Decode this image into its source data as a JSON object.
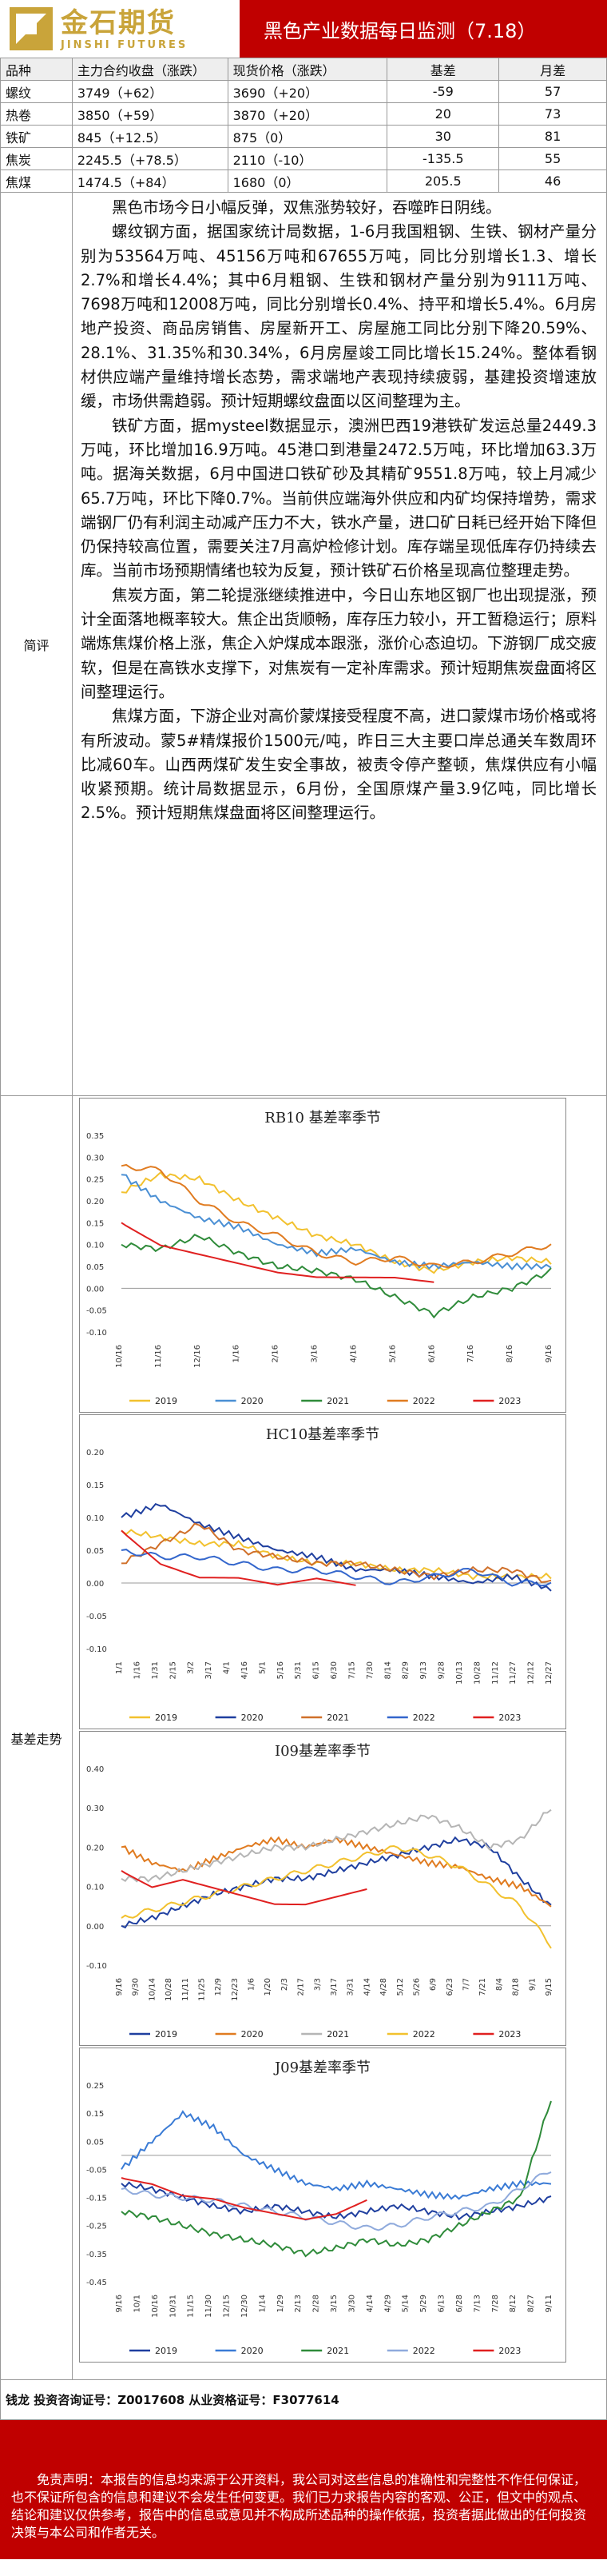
{
  "header": {
    "logo_cn": "金石期货",
    "logo_en": "JINSHI FUTURES",
    "title": "黑色产业数据每日监测（7.18）"
  },
  "table": {
    "headers": [
      "品种",
      "主力合约收盘（涨跌）",
      "现货价格（涨跌）",
      "基差",
      "月差"
    ],
    "rows": [
      [
        "螺纹",
        "3749（+62）",
        "3690（+20）",
        "-59",
        "57"
      ],
      [
        "热卷",
        "3850（+59）",
        "3870（+20）",
        "20",
        "73"
      ],
      [
        "铁矿",
        "845（+12.5）",
        "875（0）",
        "30",
        "81"
      ],
      [
        "焦炭",
        "2245.5（+78.5）",
        "2110（-10）",
        "-135.5",
        "55"
      ],
      [
        "焦煤",
        "1474.5（+84）",
        "1680（0）",
        "205.5",
        "46"
      ]
    ]
  },
  "review": {
    "label": "简评",
    "paragraphs": [
      "黑色市场今日小幅反弹，双焦涨势较好，吞噬昨日阴线。",
      "螺纹钢方面，据国家统计局数据，1-6月我国粗钢、生铁、钢材产量分别为53564万吨、45156万吨和67655万吨，同比分别增长1.3、增长2.7%和增长4.4%；其中6月粗钢、生铁和钢材产量分别为9111万吨、7698万吨和12008万吨，同比分别增长0.4%、持平和增长5.4%。6月房地产投资、商品房销售、房屋新开工、房屋施工同比分别下降20.59%、28.1%、31.35%和30.34%，6月房屋竣工同比增长15.24%。整体看钢材供应端产量维持增长态势，需求端地产表现持续疲弱，基建投资增速放缓，市场供需趋弱。预计短期螺纹盘面以区间整理为主。",
      "铁矿方面，据mysteel数据显示，澳洲巴西19港铁矿发运总量2449.3万吨，环比增加16.9万吨。45港口到港量2472.5万吨，环比增加63.3万吨。据海关数据，6月中国进口铁矿砂及其精矿9551.8万吨，较上月减少65.7万吨，环比下降0.7%。当前供应端海外供应和内矿均保持增势，需求端钢厂仍有利润主动减产压力不大，铁水产量，进口矿日耗已经开始下降但仍保持较高位置，需要关注7月高炉检修计划。库存端呈现低库存仍持续去库。当前市场预期情绪也较为反复，预计铁矿石价格呈现高位整理走势。",
      "焦炭方面，第二轮提涨继续推进中，今日山东地区钢厂也出现提涨，预计全面落地概率较大。焦企出货顺畅，库存压力较小，开工暂稳运行；原料端炼焦煤价格上涨，焦企入炉煤成本跟涨，涨价心态迫切。下游钢厂成交疲软，但是在高铁水支撑下，对焦炭有一定补库需求。预计短期焦炭盘面将区间整理运行。",
      "焦煤方面，下游企业对高价蒙煤接受程度不高，进口蒙煤市场价格或将有所波动。蒙5#精煤报价1500元/吨，昨日三大主要口岸总通关车数周环比减60车。山西两煤矿发生安全事故，被责令停产整顿，焦煤供应有小幅收紧预期。统计局数据显示，6月份，全国原煤产量3.9亿吨，同比增长2.5%。预计短期焦煤盘面将区间整理运行。"
    ]
  },
  "basis": {
    "label": "基差走势"
  },
  "chart_data": [
    {
      "type": "line",
      "title": "RB10 基差率季节",
      "x_ticks": [
        "10/16",
        "11/16",
        "12/16",
        "1/16",
        "2/16",
        "3/16",
        "4/16",
        "5/16",
        "6/16",
        "7/16",
        "8/16",
        "9/16"
      ],
      "ylim": [
        -0.1,
        0.35
      ],
      "y_ticks": [
        -0.1,
        -0.05,
        0.0,
        0.05,
        0.1,
        0.15,
        0.2,
        0.25,
        0.3,
        0.35
      ],
      "legend": "bottom",
      "series": [
        {
          "name": "2019",
          "color": "#f2c12e",
          "values": [
            0.22,
            0.26,
            0.25,
            0.2,
            0.16,
            0.12,
            0.1,
            0.06,
            0.04,
            0.06,
            0.07,
            0.06
          ]
        },
        {
          "name": "2020",
          "color": "#4a8fd4",
          "values": [
            0.26,
            0.2,
            0.16,
            0.14,
            0.1,
            0.08,
            0.09,
            0.06,
            0.05,
            0.06,
            0.05,
            0.05
          ]
        },
        {
          "name": "2021",
          "color": "#2f8b3a",
          "values": [
            0.1,
            0.09,
            0.12,
            0.08,
            0.05,
            0.04,
            0.02,
            -0.02,
            -0.06,
            -0.02,
            0.0,
            0.04
          ]
        },
        {
          "name": "2022",
          "color": "#e07b20",
          "values": [
            0.28,
            0.27,
            0.2,
            0.15,
            0.12,
            0.08,
            0.06,
            0.07,
            0.05,
            0.06,
            0.08,
            0.1
          ]
        },
        {
          "name": "2023",
          "color": "#e02020",
          "values": [
            0.15,
            0.1,
            0.08,
            0.06,
            0.04,
            0.03,
            0.03,
            0.03,
            0.02,
            null,
            null,
            null
          ]
        }
      ]
    },
    {
      "type": "line",
      "title": "HC10基差率季节",
      "x_ticks": [
        "1/1",
        "1/16",
        "1/31",
        "2/15",
        "3/2",
        "3/17",
        "4/1",
        "4/16",
        "5/1",
        "5/16",
        "5/31",
        "6/15",
        "6/30",
        "7/15",
        "7/30",
        "8/14",
        "8/29",
        "9/13",
        "9/28",
        "10/13",
        "10/28",
        "11/12",
        "11/27",
        "12/12",
        "12/27"
      ],
      "ylim": [
        -0.1,
        0.2
      ],
      "y_ticks": [
        -0.1,
        -0.05,
        0.0,
        0.05,
        0.1,
        0.15,
        0.2
      ],
      "legend": "bottom",
      "series": [
        {
          "name": "2019",
          "color": "#f2c12e",
          "values": [
            0.08,
            0.07,
            0.06,
            0.06,
            0.04,
            0.03,
            0.03,
            0.02,
            0.02,
            0.01,
            0.01,
            0.01
          ]
        },
        {
          "name": "2020",
          "color": "#1f3f9f",
          "values": [
            0.1,
            0.12,
            0.09,
            0.07,
            0.05,
            0.04,
            0.02,
            0.02,
            0.01,
            0.0,
            0.01,
            -0.01
          ]
        },
        {
          "name": "2021",
          "color": "#d0702a",
          "values": [
            0.03,
            0.06,
            0.09,
            0.05,
            0.04,
            0.03,
            0.03,
            0.02,
            0.01,
            0.02,
            0.02,
            0.0
          ]
        },
        {
          "name": "2022",
          "color": "#3366cc",
          "values": [
            0.05,
            0.04,
            0.04,
            0.03,
            0.02,
            0.02,
            0.01,
            0.0,
            0.01,
            0.02,
            0.0,
            0.0
          ]
        },
        {
          "name": "2023",
          "color": "#e02020",
          "values": [
            0.08,
            0.03,
            0.01,
            0.01,
            0.0,
            0.01,
            0.0,
            null,
            null,
            null,
            null,
            null
          ]
        }
      ]
    },
    {
      "type": "line",
      "title": "I09基差率季节",
      "x_ticks": [
        "9/16",
        "9/30",
        "10/14",
        "10/28",
        "11/11",
        "11/25",
        "12/9",
        "12/23",
        "1/6",
        "1/20",
        "2/3",
        "2/17",
        "3/3",
        "3/17",
        "3/31",
        "4/14",
        "4/28",
        "5/12",
        "5/26",
        "6/9",
        "6/23",
        "7/7",
        "7/21",
        "8/4",
        "8/18",
        "9/1",
        "9/15"
      ],
      "ylim": [
        -0.1,
        0.4
      ],
      "y_ticks": [
        -0.1,
        0.0,
        0.1,
        0.2,
        0.3,
        0.4
      ],
      "legend": "bottom",
      "series": [
        {
          "name": "2019",
          "color": "#1f3f9f",
          "values": [
            0.0,
            0.02,
            0.05,
            0.08,
            0.1,
            0.12,
            0.12,
            0.14,
            0.16,
            0.18,
            0.2,
            0.22,
            0.2,
            0.12,
            0.05
          ]
        },
        {
          "name": "2020",
          "color": "#e07b20",
          "values": [
            0.2,
            0.16,
            0.14,
            0.17,
            0.2,
            0.22,
            0.2,
            0.22,
            0.2,
            0.18,
            0.16,
            0.15,
            0.12,
            0.1,
            0.05
          ]
        },
        {
          "name": "2021",
          "color": "#b5b5b5",
          "values": [
            0.12,
            0.12,
            0.14,
            0.16,
            0.18,
            0.2,
            0.2,
            0.22,
            0.24,
            0.26,
            0.28,
            0.25,
            0.2,
            0.22,
            0.3
          ]
        },
        {
          "name": "2022",
          "color": "#f2c12e",
          "values": [
            0.02,
            0.04,
            0.06,
            0.08,
            0.1,
            0.12,
            0.14,
            0.16,
            0.18,
            0.2,
            0.18,
            0.15,
            0.1,
            0.05,
            -0.05
          ]
        },
        {
          "name": "2023",
          "color": "#e02020",
          "values": [
            0.14,
            0.1,
            0.12,
            0.1,
            0.08,
            0.06,
            0.06,
            0.08,
            0.1,
            null,
            null,
            null,
            null,
            null,
            null
          ]
        }
      ]
    },
    {
      "type": "line",
      "title": "J09基差率季节",
      "x_ticks": [
        "9/16",
        "10/1",
        "10/16",
        "10/31",
        "11/15",
        "11/30",
        "12/15",
        "12/30",
        "1/14",
        "1/29",
        "2/13",
        "2/28",
        "3/15",
        "3/30",
        "4/14",
        "4/29",
        "5/14",
        "5/29",
        "6/13",
        "6/28",
        "7/13",
        "7/28",
        "8/12",
        "8/27",
        "9/11"
      ],
      "ylim": [
        -0.45,
        0.25
      ],
      "y_ticks": [
        -0.45,
        -0.35,
        -0.25,
        -0.15,
        -0.05,
        0.05,
        0.15,
        0.25
      ],
      "legend": "bottom",
      "series": [
        {
          "name": "2019",
          "color": "#1f3f9f",
          "values": [
            -0.1,
            -0.12,
            -0.15,
            -0.18,
            -0.2,
            -0.18,
            -0.2,
            -0.22,
            -0.2,
            -0.18,
            -0.2,
            -0.22,
            -0.2,
            -0.18,
            -0.15
          ]
        },
        {
          "name": "2020",
          "color": "#3a7bd5",
          "values": [
            -0.05,
            0.05,
            0.15,
            0.1,
            0.0,
            -0.05,
            -0.1,
            -0.12,
            -0.1,
            -0.12,
            -0.14,
            -0.15,
            -0.12,
            -0.1,
            -0.1
          ]
        },
        {
          "name": "2021",
          "color": "#2f8b3a",
          "values": [
            -0.2,
            -0.22,
            -0.25,
            -0.28,
            -0.3,
            -0.32,
            -0.35,
            -0.33,
            -0.3,
            -0.32,
            -0.3,
            -0.25,
            -0.2,
            -0.15,
            0.2
          ]
        },
        {
          "name": "2022",
          "color": "#8faadc",
          "values": [
            -0.12,
            -0.14,
            -0.15,
            -0.16,
            -0.18,
            -0.2,
            -0.22,
            -0.24,
            -0.26,
            -0.25,
            -0.22,
            -0.2,
            -0.18,
            -0.12,
            -0.05
          ]
        },
        {
          "name": "2023",
          "color": "#e02020",
          "values": [
            -0.08,
            -0.1,
            -0.14,
            -0.15,
            -0.18,
            -0.2,
            -0.22,
            -0.2,
            -0.15,
            null,
            null,
            null,
            null,
            null,
            null
          ]
        }
      ]
    }
  ],
  "contact": "钱龙 投资咨询证号：Z0017608 从业资格证号：F3077614",
  "disclaimer": "免责声明：本报告的信息均来源于公开资料，我公司对这些信息的准确性和完整性不作任何保证，也不保证所包含的信息和建议不会发生任何变更。我们已力求报告内容的客观、公正，但文中的观点、结论和建议仅供参考，报告中的信息或意见并不构成所述品种的操作依据，投资者据此做出的任何投资决策与本公司和作者无关。"
}
